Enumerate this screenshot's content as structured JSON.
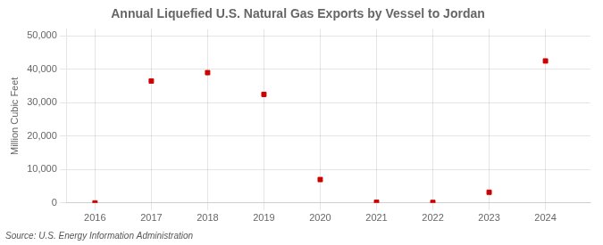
{
  "chart_data": {
    "type": "scatter",
    "title": "Annual Liquefied U.S. Natural Gas Exports by Vessel to Jordan",
    "ylabel": "Million Cubic Feet",
    "annotations": [
      "Source: U.S. Energy Information Administration"
    ],
    "x": [
      2016,
      2017,
      2018,
      2019,
      2020,
      2021,
      2022,
      2023,
      2024
    ],
    "values": [
      0,
      36500,
      39000,
      32500,
      7000,
      200,
      150,
      3200,
      42500
    ],
    "color": "#cc0000",
    "marker": "square",
    "grid": true,
    "xlim": [
      2015.5,
      2024.8
    ],
    "xticks": [
      2016,
      2017,
      2018,
      2019,
      2020,
      2021,
      2022,
      2023,
      2024
    ],
    "ylim": [
      0,
      52000
    ],
    "yticks": [
      0,
      {
        "value": 10000,
        "label": "10,000"
      },
      {
        "value": 20000,
        "label": "20,000"
      },
      {
        "value": 30000,
        "label": "30,000"
      },
      {
        "value": 40000,
        "label": "40,000"
      },
      {
        "value": 50000,
        "label": "50,000"
      }
    ]
  }
}
